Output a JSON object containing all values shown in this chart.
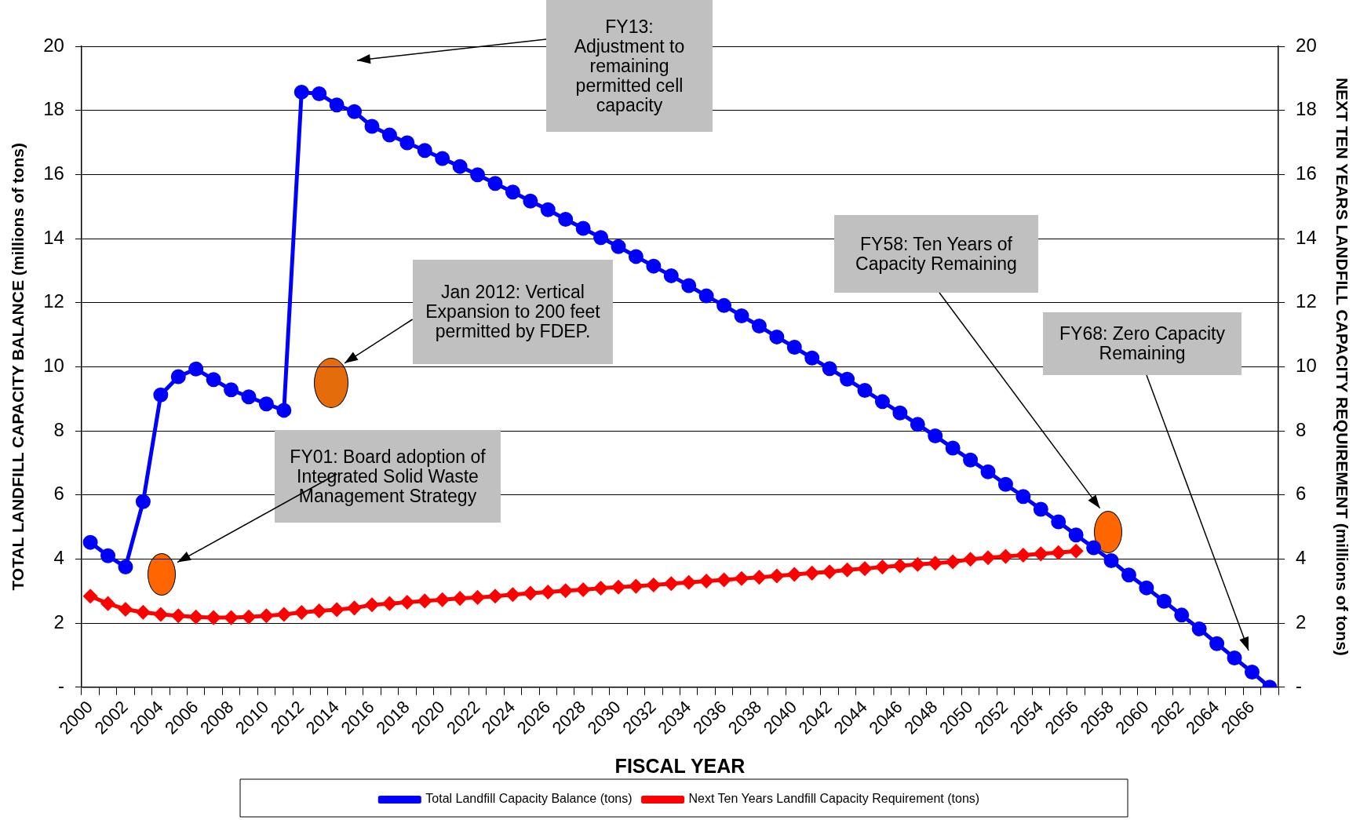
{
  "chart_data": {
    "type": "line",
    "xlabel": "FISCAL YEAR",
    "ylabel": "TOTAL LANDFILL CAPACITY BALANCE (millions of tons)",
    "y2label": "NEXT TEN YEARS LANDFILL CAPACITY REQUIREMENT (millions of tons)",
    "categories": [
      "2000",
      null,
      "2002",
      null,
      "2004",
      null,
      "2006",
      null,
      "2008",
      null,
      "2010",
      null,
      "2012",
      null,
      "2014",
      null,
      "2016",
      null,
      "2018",
      null,
      "2020",
      null,
      "2022",
      null,
      "2024",
      null,
      "2026",
      null,
      "2028",
      null,
      "2030",
      null,
      "2032",
      null,
      "2034",
      null,
      "2036",
      null,
      "2038",
      null,
      "2040",
      null,
      "2042",
      null,
      "2044",
      null,
      "2046",
      null,
      "2048",
      null,
      "2050",
      null,
      "2052",
      null,
      "2054",
      null,
      "2056",
      null,
      "2058",
      null,
      "2060",
      null,
      "2062",
      null,
      "2064",
      null,
      "2066",
      null
    ],
    "series": [
      {
        "name": "Total Landfill Capacity Balance (tons)",
        "color": "#0000ff",
        "marker": "circle",
        "values": [
          4.52,
          4.1,
          3.75,
          5.79,
          9.12,
          9.69,
          9.93,
          9.6,
          9.28,
          9.06,
          8.84,
          8.64,
          18.57,
          18.52,
          18.17,
          17.96,
          17.5,
          17.23,
          16.99,
          16.75,
          16.5,
          16.25,
          15.99,
          15.72,
          15.45,
          15.17,
          14.9,
          14.6,
          14.32,
          14.03,
          13.75,
          13.44,
          13.14,
          12.84,
          12.53,
          12.21,
          11.91,
          11.59,
          11.27,
          10.93,
          10.61,
          10.27,
          9.94,
          9.61,
          9.26,
          8.91,
          8.56,
          8.2,
          7.84,
          7.46,
          7.09,
          6.72,
          6.33,
          5.95,
          5.55,
          5.16,
          4.75,
          4.35,
          3.95,
          3.5,
          3.1,
          2.68,
          2.25,
          1.82,
          1.36,
          0.91,
          0.47,
          0
        ]
      },
      {
        "name": "Next Ten Years Landfill Capacity Requirement (tons)",
        "color": "#ff0000",
        "marker": "diamond",
        "axis": "y2",
        "values": [
          2.84,
          2.61,
          2.43,
          2.34,
          2.27,
          2.23,
          2.19,
          2.17,
          2.17,
          2.19,
          2.23,
          2.27,
          2.33,
          2.38,
          2.42,
          2.47,
          2.57,
          2.61,
          2.65,
          2.69,
          2.73,
          2.77,
          2.8,
          2.84,
          2.89,
          2.93,
          2.97,
          3.01,
          3.04,
          3.09,
          3.12,
          3.15,
          3.19,
          3.23,
          3.27,
          3.31,
          3.35,
          3.39,
          3.43,
          3.47,
          3.52,
          3.56,
          3.6,
          3.66,
          3.7,
          3.75,
          3.79,
          3.83,
          3.87,
          3.91,
          3.99,
          4.04,
          4.08,
          4.12,
          4.16,
          4.2,
          4.25,
          null,
          null,
          null,
          null,
          null,
          null,
          null,
          null,
          null,
          null,
          null
        ]
      }
    ],
    "ylim": [
      0,
      20
    ],
    "yticks": [
      {
        "value": 0,
        "label": "-"
      },
      2,
      4,
      6,
      8,
      10,
      12,
      14,
      16,
      18,
      20
    ],
    "y2lim": [
      0,
      20
    ],
    "y2ticks": [
      {
        "value": 0,
        "label": "-"
      },
      2,
      4,
      6,
      8,
      10,
      12,
      14,
      16,
      18,
      20
    ],
    "grid": "y",
    "legend": "bottom",
    "line_style": "solid",
    "annotations": [
      "FY13: Adjustment to remaining permitted cell capacity",
      "Jan 2012: Vertical Expansion to 200 feet permitted by FDEP.",
      "FY01: Board adoption of Integrated Solid Waste Management Strategy",
      "FY58: Ten Years of Capacity Remaining",
      "FY68: Zero Capacity Remaining"
    ]
  }
}
